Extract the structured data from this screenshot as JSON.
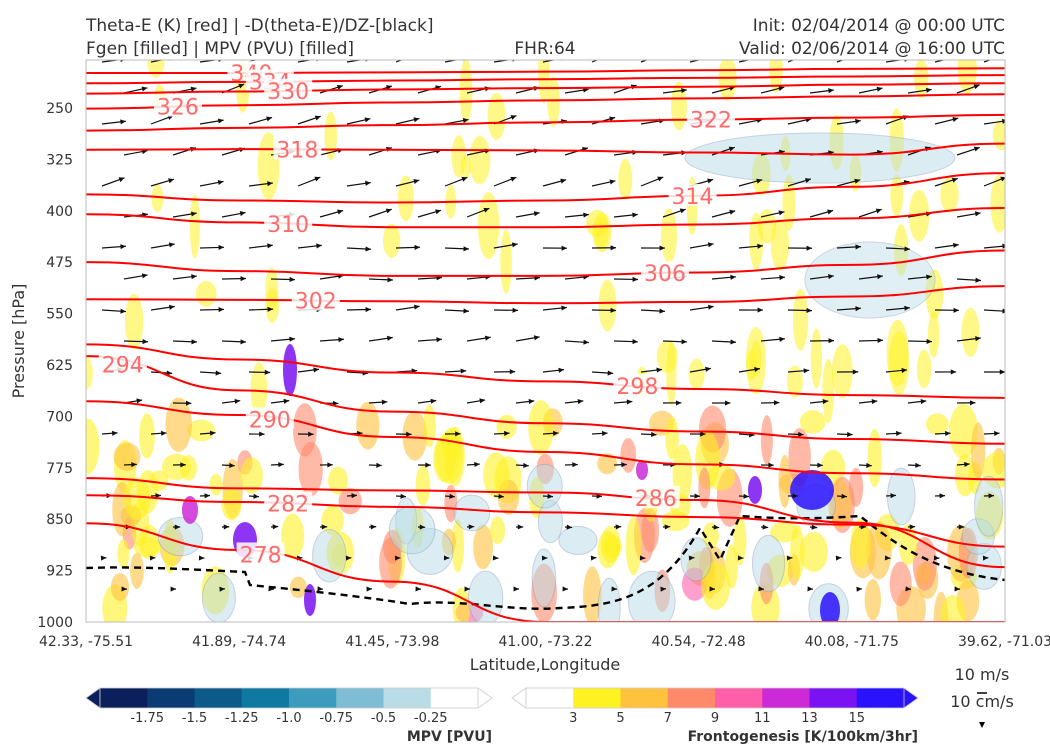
{
  "header": {
    "title_left_1": "Theta-E (K) [red] | -D(theta-E)/DZ-[black]",
    "title_left_2": "Fgen [filled] | MPV (PVU) [filled]",
    "title_center": "FHR:64",
    "title_right_1": "Init: 02/04/2014 @ 00:00 UTC",
    "title_right_2": "Valid: 02/06/2014 @ 16:00 UTC"
  },
  "chart_data": {
    "type": "cross-section",
    "xlabel": "Latitude,Longitude",
    "ylabel": "Pressure [hPa]",
    "x_ticks": [
      "42.33, -75.51",
      "41.89, -74.74",
      "41.45, -73.98",
      "41.00, -73.22",
      "40.54, -72.48",
      "40.08, -71.75",
      "39.62, -71.03"
    ],
    "y_ticks": [
      "250",
      "325",
      "400",
      "475",
      "550",
      "625",
      "700",
      "775",
      "850",
      "925",
      "1000"
    ],
    "ylim": [
      1000,
      180
    ],
    "theta_e_contours": [
      {
        "label": "340",
        "y": [
          199,
          199,
          198,
          197,
          195,
          193,
          192
        ]
      },
      {
        "label": "334",
        "y": [
          214,
          212,
          210,
          208,
          206,
          204,
          202
        ]
      },
      {
        "label": "330",
        "y": [
          229,
          226,
          223,
          221,
          219,
          216,
          214
        ]
      },
      {
        "label": "326",
        "y": [
          251,
          246,
          242,
          239,
          236,
          233,
          230
        ]
      },
      {
        "label": "322",
        "y": [
          283,
          279,
          275,
          271,
          267,
          264,
          260
        ]
      },
      {
        "label": "318",
        "y": [
          311,
          310,
          311,
          312,
          315,
          318,
          302
        ]
      },
      {
        "label": "314",
        "y": [
          376,
          385,
          388,
          385,
          378,
          365,
          345
        ]
      },
      {
        "label": "310",
        "y": [
          405,
          417,
          424,
          424,
          420,
          411,
          396
        ]
      },
      {
        "label": "306",
        "y": [
          475,
          488,
          495,
          495,
          490,
          479,
          458
        ]
      },
      {
        "label": "302",
        "y": [
          529,
          530,
          532,
          535,
          533,
          525,
          510
        ]
      },
      {
        "label": "298",
        "y": [
          595,
          617,
          636,
          649,
          660,
          669,
          673
        ]
      },
      {
        "label": "294",
        "y": [
          612,
          662,
          693,
          710,
          722,
          733,
          740
        ]
      },
      {
        "label": "290",
        "y": [
          678,
          698,
          730,
          752,
          770,
          783,
          792
        ]
      },
      {
        "label": "286",
        "y": [
          790,
          805,
          808,
          811,
          822,
          855,
          920
        ]
      },
      {
        "label": "282",
        "y": [
          815,
          825,
          832,
          840,
          847,
          858,
          890
        ]
      },
      {
        "label": "278",
        "y": [
          856,
          895,
          941,
          1000,
          1000,
          1000,
          1000
        ]
      }
    ],
    "colorbars": [
      {
        "name": "MPV [PVU]",
        "colors": [
          "#0b1f5c",
          "#0a3c73",
          "#0b5a8a",
          "#0e7aa1",
          "#3d9cbe",
          "#7ebdd3",
          "#b9dce6",
          "#ffffff"
        ],
        "ticks": [
          "-1.75",
          "-1.5",
          "-1.25",
          "-1.0",
          "-0.75",
          "-0.5",
          "-0.25"
        ]
      },
      {
        "name": "Frontogenesis [K/100km/3hr]",
        "colors": [
          "#ffffff",
          "#fff223",
          "#ffc23d",
          "#ff8a6a",
          "#ff5fa8",
          "#cc2ad6",
          "#7a12f2",
          "#2a12ff"
        ],
        "ticks": [
          "3",
          "5",
          "7",
          "9",
          "11",
          "13",
          "15"
        ]
      }
    ],
    "wind_key": {
      "horizontal": "10 m/s",
      "vertical": "10 cm/s"
    },
    "colors": {
      "theta_e": "#ff0000",
      "theta_e_labels": "#ff6b6b",
      "stability": "#000000",
      "mpv_outline": "#8aa4c4"
    }
  }
}
